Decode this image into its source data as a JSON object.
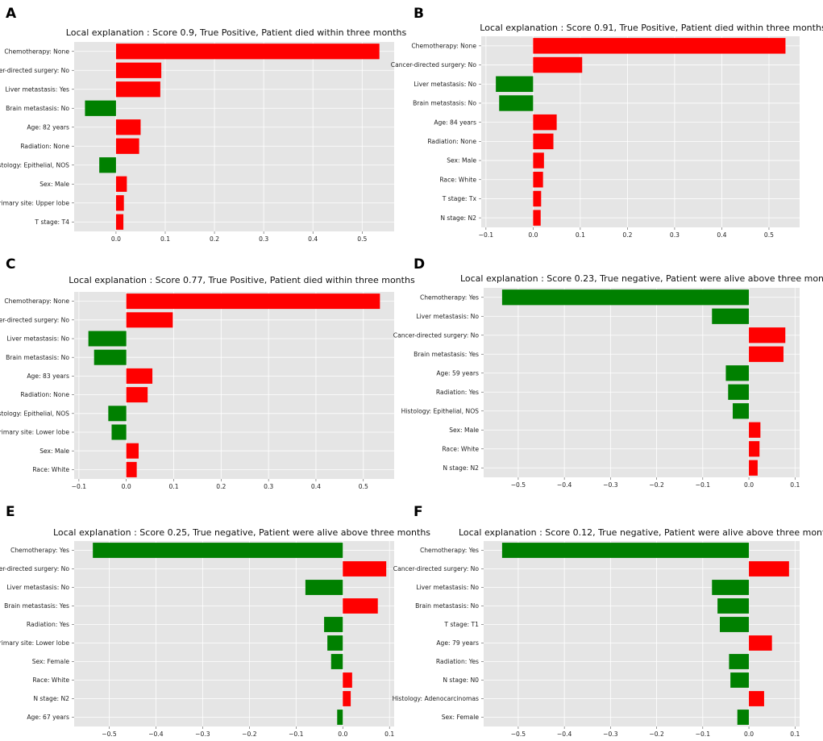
{
  "figure": {
    "colors": {
      "positive": "#ff0000",
      "negative": "#008000",
      "plot_bg": "#e5e5e5",
      "grid": "#ffffff"
    }
  },
  "chart_data": [
    {
      "type": "bar",
      "orientation": "horizontal",
      "panel_label": "A",
      "title": "Local explanation : Score 0.9, True Positive, Patient died within three months",
      "categories": [
        "Chemotherapy: None",
        "Cancer-directed surgery: No",
        "Liver metastasis: Yes",
        "Brain metastasis: No",
        "Age: 82 years",
        "Radiation: None",
        "Histology: Epithelial, NOS",
        "Sex: Male",
        "Primary site: Upper lobe",
        "T stage: T4"
      ],
      "values": [
        0.535,
        0.092,
        0.09,
        -0.063,
        0.05,
        0.047,
        -0.034,
        0.022,
        0.016,
        0.015
      ],
      "xlim": [
        -0.085,
        0.565
      ],
      "xticks": [
        0.0,
        0.1,
        0.2,
        0.3,
        0.4,
        0.5
      ],
      "xtick_labels": [
        "0.0",
        "0.1",
        "0.2",
        "0.3",
        "0.4",
        "0.5"
      ],
      "grid": true
    },
    {
      "type": "bar",
      "orientation": "horizontal",
      "panel_label": "B",
      "title": "Local explanation : Score 0.91, True Positive, Patient died within three months",
      "categories": [
        "Chemotherapy: None",
        "Cancer-directed surgery: No",
        "Liver metastasis: No",
        "Brain metastasis: No",
        "Age: 84 years",
        "Radiation: None",
        "Sex: Male",
        "Race: White",
        "T stage: Tx",
        "N stage: N2"
      ],
      "values": [
        0.535,
        0.104,
        -0.079,
        -0.072,
        0.05,
        0.043,
        0.023,
        0.021,
        0.017,
        0.016
      ],
      "xlim": [
        -0.11,
        0.565
      ],
      "xticks": [
        -0.1,
        0.0,
        0.1,
        0.2,
        0.3,
        0.4,
        0.5
      ],
      "xtick_labels": [
        "−0.1",
        "0.0",
        "0.1",
        "0.2",
        "0.3",
        "0.4",
        "0.5"
      ],
      "grid": true
    },
    {
      "type": "bar",
      "orientation": "horizontal",
      "panel_label": "C",
      "title": "Local explanation : Score 0.77, True Positive, Patient died within three months",
      "categories": [
        "Chemotherapy: None",
        "Cancer-directed surgery: No",
        "Liver metastasis: No",
        "Brain metastasis: No",
        "Age: 83 years",
        "Radiation: None",
        "Histology: Epithelial, NOS",
        "Primary site: Lower lobe",
        "Sex: Male",
        "Race: White"
      ],
      "values": [
        0.535,
        0.098,
        -0.08,
        -0.068,
        0.055,
        0.045,
        -0.038,
        -0.031,
        0.026,
        0.022
      ],
      "xlim": [
        -0.11,
        0.565
      ],
      "xticks": [
        -0.1,
        0.0,
        0.1,
        0.2,
        0.3,
        0.4,
        0.5
      ],
      "xtick_labels": [
        "−0.1",
        "0.0",
        "0.1",
        "0.2",
        "0.3",
        "0.4",
        "0.5"
      ],
      "grid": true
    },
    {
      "type": "bar",
      "orientation": "horizontal",
      "panel_label": "D",
      "title": "Local explanation : Score 0.23, True negative, Patient were alive above three months",
      "categories": [
        "Chemotherapy: Yes",
        "Liver metastasis: No",
        "Cancer-directed surgery: No",
        "Brain metastasis: Yes",
        "Age: 59 years",
        "Radiation: Yes",
        "Histology: Epithelial, NOS",
        "Sex: Male",
        "Race: White",
        "N stage: N2"
      ],
      "values": [
        -0.535,
        -0.08,
        0.079,
        0.075,
        -0.05,
        -0.045,
        -0.035,
        0.025,
        0.023,
        0.019
      ],
      "xlim": [
        -0.575,
        0.11
      ],
      "xticks": [
        -0.5,
        -0.4,
        -0.3,
        -0.2,
        -0.1,
        0.0,
        0.1
      ],
      "xtick_labels": [
        "−0.5",
        "−0.4",
        "−0.3",
        "−0.2",
        "−0.1",
        "0.0",
        "0.1"
      ],
      "grid": true
    },
    {
      "type": "bar",
      "orientation": "horizontal",
      "panel_label": "E",
      "title": "Local explanation : Score 0.25, True negative, Patient were alive above three months",
      "categories": [
        "Chemotherapy: Yes",
        "Cancer-directed surgery: No",
        "Liver metastasis: No",
        "Brain metastasis: Yes",
        "Radiation: Yes",
        "Primary site: Lower lobe",
        "Sex: Female",
        "Race: White",
        "N stage: N2",
        "Age: 67 years"
      ],
      "values": [
        -0.535,
        0.093,
        -0.08,
        0.075,
        -0.04,
        -0.033,
        -0.025,
        0.02,
        0.017,
        -0.012
      ],
      "xlim": [
        -0.575,
        0.11
      ],
      "xticks": [
        -0.5,
        -0.4,
        -0.3,
        -0.2,
        -0.1,
        0.0,
        0.1
      ],
      "xtick_labels": [
        "−0.5",
        "−0.4",
        "−0.3",
        "−0.2",
        "−0.1",
        "0.0",
        "0.1"
      ],
      "grid": true
    },
    {
      "type": "bar",
      "orientation": "horizontal",
      "panel_label": "F",
      "title": "Local explanation : Score 0.12, True negative, Patient were alive above three months",
      "categories": [
        "Chemotherapy: Yes",
        "Cancer-directed surgery: No",
        "Liver metastasis: No",
        "Brain metastasis: No",
        "T stage: T1",
        "Age: 79 years",
        "Radiation: Yes",
        "N stage: N0",
        "Histology: Adenocarcinomas",
        "Sex: Female"
      ],
      "values": [
        -0.535,
        0.087,
        -0.08,
        -0.068,
        -0.063,
        0.05,
        -0.043,
        -0.04,
        0.033,
        -0.025
      ],
      "xlim": [
        -0.575,
        0.11
      ],
      "xticks": [
        -0.5,
        -0.4,
        -0.3,
        -0.2,
        -0.1,
        0.0,
        0.1
      ],
      "xtick_labels": [
        "−0.5",
        "−0.4",
        "−0.3",
        "−0.2",
        "−0.1",
        "0.0",
        "0.1"
      ],
      "grid": true
    }
  ]
}
